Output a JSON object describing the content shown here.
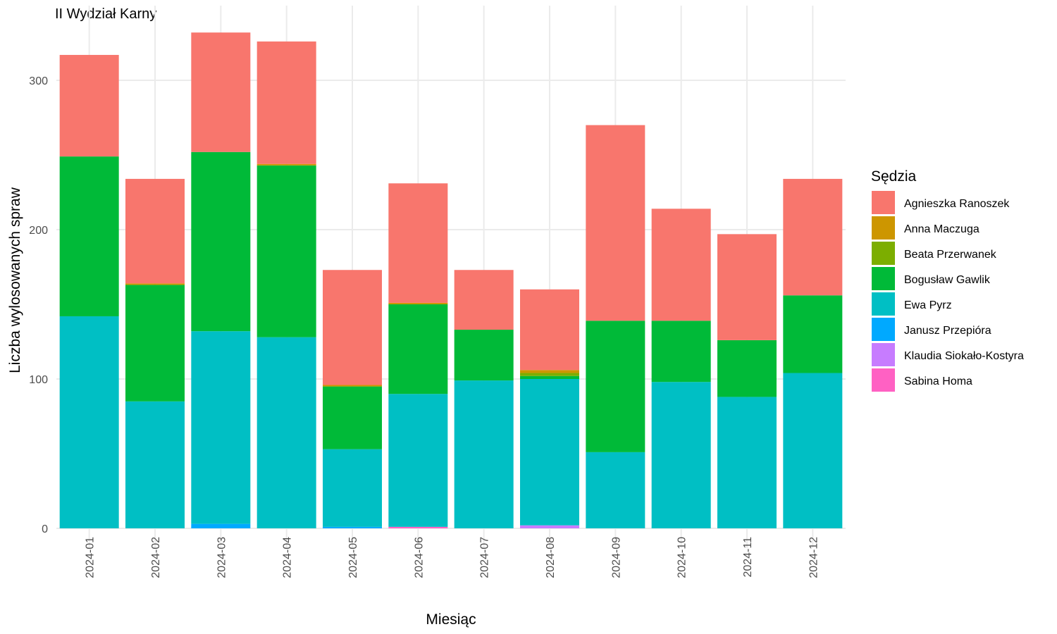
{
  "chart_data": {
    "type": "bar",
    "stacked": true,
    "title": "II Wydział Karny",
    "xlabel": "Miesiąc",
    "ylabel": "Liczba wylosowanych spraw",
    "ylim": [
      0,
      335
    ],
    "yticks": [
      0,
      100,
      200,
      300
    ],
    "grid": true,
    "legend": {
      "title": "Sędzia",
      "position": "right"
    },
    "categories": [
      "2024-01",
      "2024-02",
      "2024-03",
      "2024-04",
      "2024-05",
      "2024-06",
      "2024-07",
      "2024-08",
      "2024-09",
      "2024-10",
      "2024-11",
      "2024-12"
    ],
    "series": [
      {
        "name": "Sabina Homa",
        "color": "#FF61C3",
        "values": [
          0,
          0,
          0,
          0,
          0,
          1,
          0,
          0,
          0,
          0,
          0,
          0
        ]
      },
      {
        "name": "Klaudia Siokało-Kostyra",
        "color": "#C77CFF",
        "values": [
          0,
          0,
          0,
          0,
          0,
          0,
          0,
          2,
          0,
          0,
          0,
          0
        ]
      },
      {
        "name": "Janusz Przepióra",
        "color": "#00A9FF",
        "values": [
          0,
          0,
          3,
          0,
          1,
          0,
          0,
          0,
          0,
          0,
          0,
          0
        ]
      },
      {
        "name": "Ewa Pyrz",
        "color": "#00BFC4",
        "values": [
          142,
          85,
          129,
          128,
          52,
          89,
          99,
          98,
          51,
          98,
          88,
          104
        ]
      },
      {
        "name": "Bogusław Gawlik",
        "color": "#00BA38",
        "values": [
          107,
          78,
          120,
          115,
          42,
          60,
          34,
          2,
          88,
          41,
          38,
          52
        ]
      },
      {
        "name": "Beata Przerwanek",
        "color": "#7CAE00",
        "values": [
          0,
          0,
          0,
          0,
          0,
          0,
          0,
          2,
          0,
          0,
          0,
          0
        ]
      },
      {
        "name": "Anna Maczuga",
        "color": "#CD9600",
        "values": [
          0,
          1,
          0,
          1,
          1,
          1,
          0,
          2,
          0,
          0,
          0,
          0
        ]
      },
      {
        "name": "Agnieszka Ranoszek",
        "color": "#F8766D",
        "values": [
          68,
          70,
          80,
          82,
          77,
          80,
          40,
          54,
          131,
          75,
          71,
          78
        ]
      }
    ]
  }
}
